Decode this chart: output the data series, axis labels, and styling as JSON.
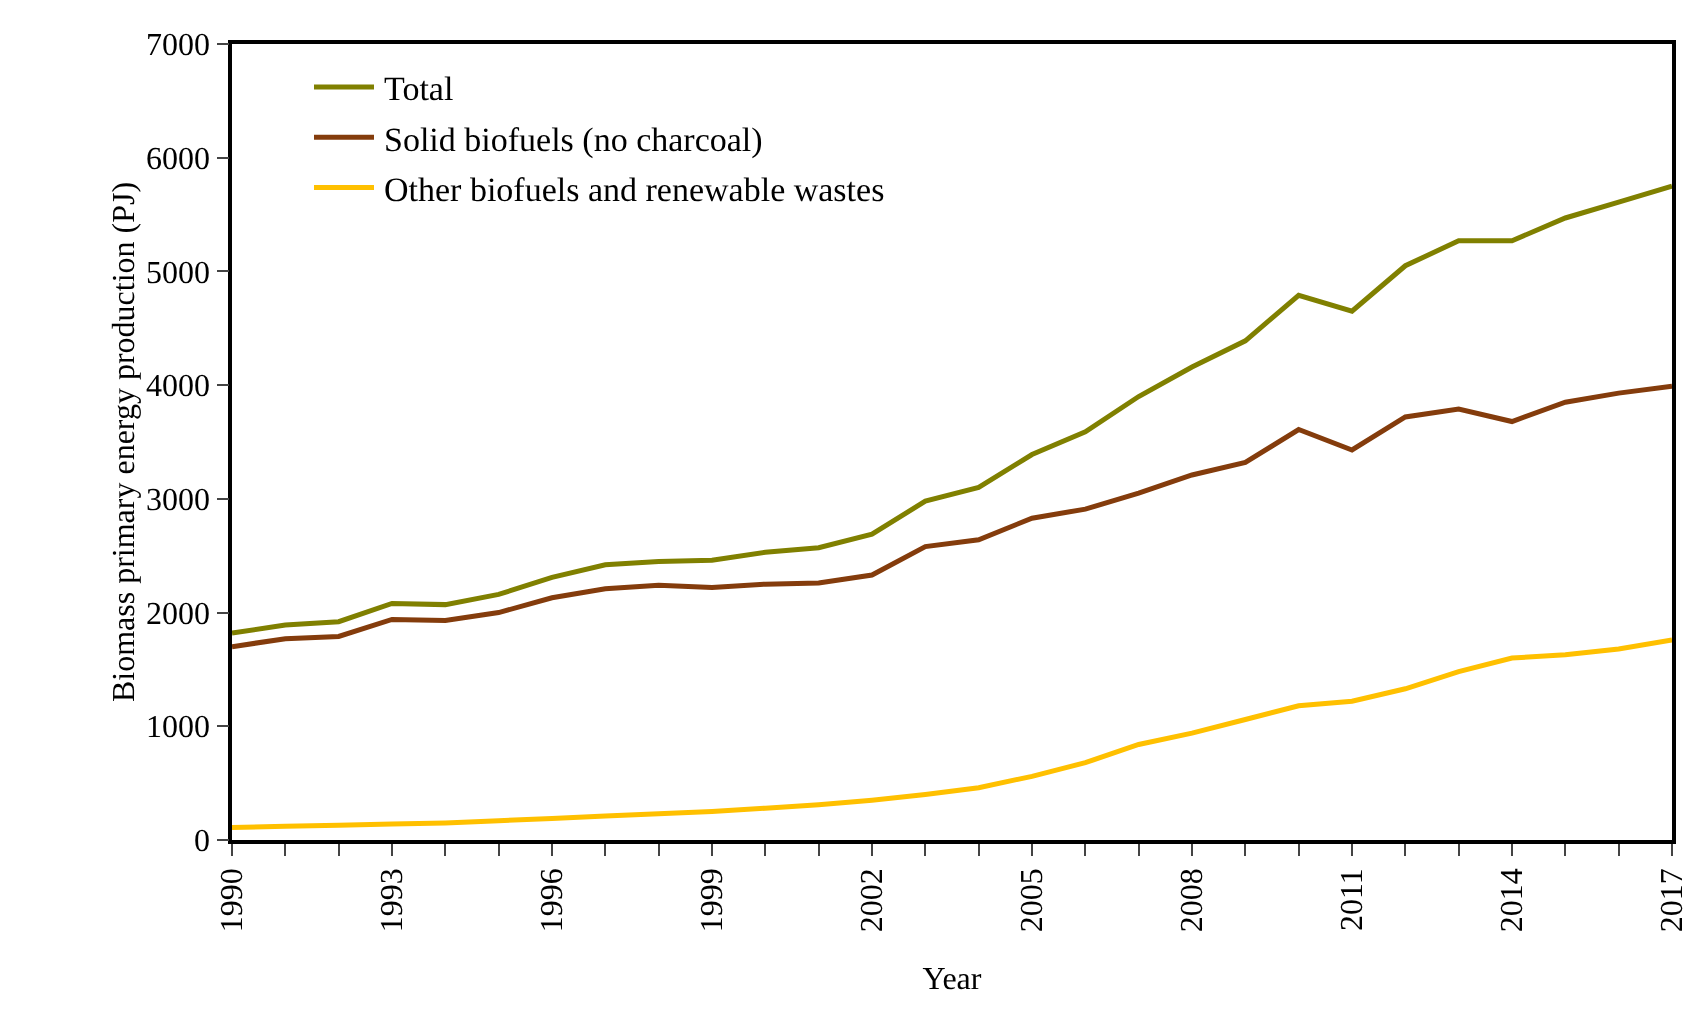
{
  "chart_data": {
    "type": "line",
    "xlabel": "Year",
    "ylabel": "Biomass primary energy production (PJ)",
    "x": [
      1990,
      1991,
      1992,
      1993,
      1994,
      1995,
      1996,
      1997,
      1998,
      1999,
      2000,
      2001,
      2002,
      2003,
      2004,
      2005,
      2006,
      2007,
      2008,
      2009,
      2010,
      2011,
      2012,
      2013,
      2014,
      2015,
      2016,
      2017
    ],
    "series": [
      {
        "name": "Total",
        "color": "#808000",
        "values": [
          1820,
          1890,
          1920,
          2080,
          2070,
          2160,
          2310,
          2420,
          2450,
          2460,
          2530,
          2570,
          2690,
          2980,
          3100,
          3390,
          3590,
          3900,
          4160,
          4390,
          4790,
          4650,
          5050,
          5270,
          5270,
          5470,
          5610,
          5750
        ]
      },
      {
        "name": "Solid biofuels (no charcoal)",
        "color": "#843c0c",
        "values": [
          1700,
          1770,
          1790,
          1940,
          1930,
          2000,
          2130,
          2210,
          2240,
          2220,
          2250,
          2260,
          2330,
          2580,
          2640,
          2830,
          2910,
          3050,
          3210,
          3320,
          3610,
          3430,
          3720,
          3790,
          3680,
          3850,
          3930,
          3990
        ]
      },
      {
        "name": "Other biofuels and renewable wastes",
        "color": "#ffc000",
        "values": [
          110,
          120,
          130,
          140,
          150,
          170,
          190,
          210,
          230,
          250,
          280,
          310,
          350,
          400,
          460,
          560,
          680,
          840,
          940,
          1060,
          1180,
          1220,
          1330,
          1480,
          1600,
          1630,
          1680,
          1760
        ]
      }
    ],
    "xlim": [
      1990,
      2017
    ],
    "xticks": [
      1990,
      {
        "value": 1991,
        "label": null
      },
      {
        "value": 1992,
        "label": null
      },
      1993,
      {
        "value": 1994,
        "label": null
      },
      {
        "value": 1995,
        "label": null
      },
      1996,
      {
        "value": 1997,
        "label": null
      },
      {
        "value": 1998,
        "label": null
      },
      1999,
      {
        "value": 2000,
        "label": null
      },
      {
        "value": 2001,
        "label": null
      },
      2002,
      {
        "value": 2003,
        "label": null
      },
      {
        "value": 2004,
        "label": null
      },
      2005,
      {
        "value": 2006,
        "label": null
      },
      {
        "value": 2007,
        "label": null
      },
      2008,
      {
        "value": 2009,
        "label": null
      },
      {
        "value": 2010,
        "label": null
      },
      2011,
      {
        "value": 2012,
        "label": null
      },
      {
        "value": 2013,
        "label": null
      },
      2014,
      {
        "value": 2015,
        "label": null
      },
      {
        "value": 2016,
        "label": null
      },
      2017
    ],
    "ylim": [
      0,
      7000
    ],
    "yticks": [
      0,
      1000,
      2000,
      3000,
      4000,
      5000,
      6000,
      7000
    ],
    "grid": false,
    "legend": "top left",
    "marker": "none",
    "line_style": "solid"
  }
}
